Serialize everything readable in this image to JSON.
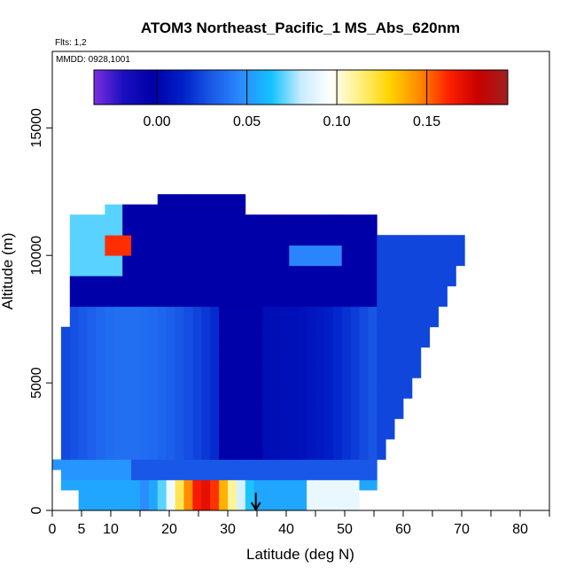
{
  "chart_data": {
    "type": "heatmap",
    "title": "ATOM3 Northeast_Pacific_1 MS_Abs_620nm",
    "flights_label": "Flts: 1,2",
    "dates_label": "MMDD: 0928,1001",
    "xlabel": "Latitude (deg N)",
    "ylabel": "Altitude (m)",
    "xlim": [
      0,
      85
    ],
    "ylim": [
      0,
      18000
    ],
    "x_ticks": [
      0,
      5,
      10,
      20,
      30,
      40,
      50,
      60,
      70,
      80
    ],
    "x_tick_marks": [
      0,
      5,
      10,
      15,
      20,
      25,
      30,
      35,
      40,
      45,
      50,
      55,
      60,
      65,
      70,
      75,
      80,
      85
    ],
    "y_ticks": [
      0,
      5000,
      10000,
      15000
    ],
    "grid": false,
    "colorbar": {
      "ticks": [
        "0.00",
        "0.05",
        "0.10",
        "0.15"
      ],
      "tick_values": [
        0.0,
        0.05,
        0.1,
        0.15
      ],
      "range": [
        -0.035,
        0.195
      ],
      "colors": [
        "#7b2fe0",
        "#1a0fc0",
        "#0000a8",
        "#0020c8",
        "#1a5ae8",
        "#2c8cff",
        "#12c2ff",
        "#c8ecff",
        "#ffffff",
        "#fff080",
        "#ffd400",
        "#ff8a00",
        "#ff2000",
        "#c80000",
        "#a02020"
      ],
      "placement": "top"
    },
    "marker": {
      "type": "arrow-down",
      "latitude": 34.8
    }
  }
}
